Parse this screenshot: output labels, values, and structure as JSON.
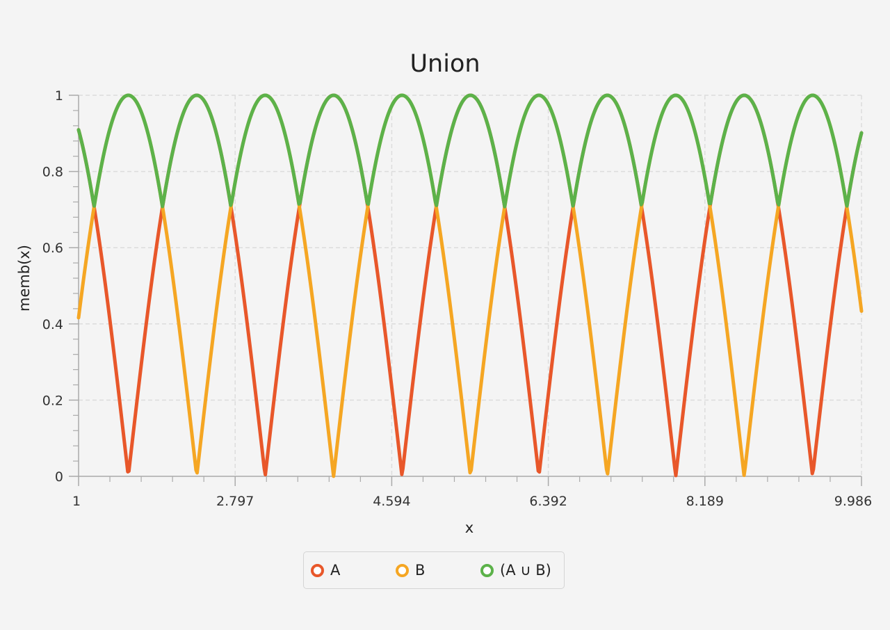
{
  "chart_data": {
    "type": "line",
    "title": "Union",
    "xlabel": "x",
    "ylabel": "memb(x)",
    "xlim": [
      1,
      9.986
    ],
    "ylim": [
      0,
      1
    ],
    "x_ticks": [
      "1",
      "2.797",
      "4.594",
      "6.392",
      "8.189",
      "9.986"
    ],
    "y_ticks": [
      "0",
      "0.2",
      "0.4",
      "0.6",
      "0.8",
      "1"
    ],
    "grid": true,
    "legend_position": "bottom",
    "series": [
      {
        "name": "A",
        "color": "#e8572a",
        "formula": "abs(sin(2x))",
        "x_range": [
          1,
          9.986
        ],
        "points": 700
      },
      {
        "name": "B",
        "color": "#f5a623",
        "formula": "abs(cos(2x))",
        "x_range": [
          1,
          9.986
        ],
        "points": 700
      },
      {
        "name": "(A ∪ B)",
        "color": "#5cb24a",
        "formula": "max(abs(sin(2x)), abs(cos(2x)))",
        "x_range": [
          1,
          9.986
        ],
        "points": 700
      }
    ]
  }
}
